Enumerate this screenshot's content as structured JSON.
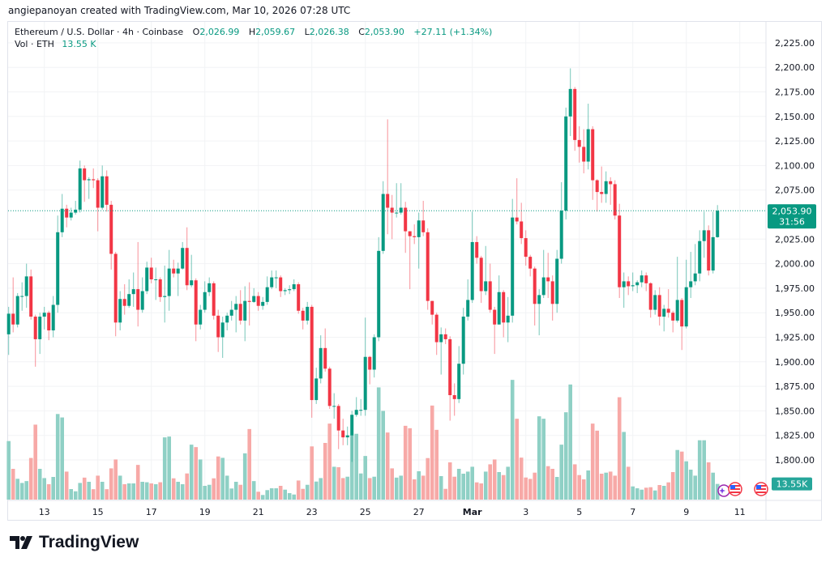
{
  "credit": "angiepanoyan created with TradingView.com, Mar 10, 2026 07:28 UTC",
  "legend": {
    "symbol": "Ethereum / U.S. Dollar · 4h · Coinbase",
    "o_label": "O",
    "o": "2,026.99",
    "h_label": "H",
    "h": "2,059.67",
    "l_label": "L",
    "l": "2,026.38",
    "c_label": "C",
    "c": "2,053.90",
    "change": "+27.11 (+1.34%)",
    "vol_label": "Vol · ETH",
    "vol": "13.55 K"
  },
  "logo": {
    "text": "TradingView"
  },
  "colors": {
    "up": "#089981",
    "down": "#f23645",
    "up_vol": "#8fd0c5",
    "down_vol": "#f7a9a7",
    "grid": "#f2f3f5"
  },
  "chart_data": {
    "type": "candlestick",
    "title": "Ethereum / U.S. Dollar · 4h · Coinbase",
    "interval": "4h",
    "first_candle": "Feb 11 2026 16:00",
    "open_first": 1928,
    "close": [
      1949,
      1938,
      1967,
      1967,
      1987,
      1946,
      1923,
      1946,
      1950,
      1932,
      1958,
      2032,
      2056,
      2047,
      2052,
      2055,
      2097,
      2085,
      2086,
      2085,
      2057,
      2089,
      2060,
      2010,
      1940,
      1964,
      1957,
      1969,
      1974,
      1953,
      1972,
      1996,
      1984,
      1984,
      1966,
      1967,
      1995,
      1990,
      1995,
      2016,
      1978,
      1983,
      1938,
      1953,
      1971,
      1980,
      1947,
      1925,
      1940,
      1947,
      1953,
      1959,
      1942,
      1962,
      1961,
      1967,
      1957,
      1961,
      1976,
      1986,
      1986,
      1972,
      1973,
      1974,
      1979,
      1952,
      1942,
      1956,
      1861,
      1883,
      1914,
      1893,
      1855,
      1855,
      1830,
      1823,
      1825,
      1846,
      1851,
      1851,
      1905,
      1892,
      1925,
      2013,
      2071,
      2057,
      2052,
      2052,
      2057,
      2033,
      2028,
      2027,
      2044,
      2032,
      1962,
      1948,
      1920,
      1928,
      1923,
      1866,
      1862,
      1898,
      1946,
      1963,
      2022,
      2006,
      1972,
      1982,
      1953,
      1938,
      1971,
      1940,
      1947,
      2047,
      2043,
      2026,
      2007,
      1995,
      1959,
      1968,
      1986,
      1982,
      1959,
      2005,
      2054,
      2150,
      2178,
      2126,
      2119,
      2104,
      2137,
      2085,
      2073,
      2071,
      2084,
      2081,
      2049,
      1976,
      1982,
      1977,
      1978,
      1981,
      1988,
      1980,
      1953,
      1968,
      1946,
      1954,
      1950,
      1942,
      1963,
      1936,
      1976,
      1982,
      1990,
      2023,
      2034,
      1993,
      2027,
      2053.9
    ],
    "high": [
      1956,
      1986,
      1970,
      1981,
      2000,
      1994,
      1948,
      1950,
      1956,
      1952,
      1967,
      2049,
      2071,
      2060,
      2057,
      2064,
      2105,
      2100,
      2088,
      2097,
      2087,
      2100,
      2095,
      2064,
      2012,
      1972,
      1979,
      1984,
      1991,
      2022,
      1986,
      2002,
      2006,
      1996,
      1986,
      1998,
      2014,
      2004,
      2001,
      2022,
      2037,
      2009,
      1985,
      1958,
      1982,
      1986,
      1982,
      1953,
      1946,
      1950,
      1962,
      1967,
      1973,
      1977,
      1981,
      1975,
      1971,
      1966,
      1987,
      1993,
      1993,
      1988,
      1975,
      1978,
      1984,
      1981,
      1955,
      1961,
      1958,
      1894,
      1927,
      1934,
      1895,
      1868,
      1857,
      1842,
      1834,
      1850,
      1864,
      1862,
      1945,
      1906,
      1928,
      2027,
      2084,
      2147,
      2070,
      2082,
      2082,
      2063,
      2033,
      2040,
      2052,
      2064,
      2036,
      1962,
      1950,
      1935,
      1934,
      1926,
      1878,
      1916,
      1955,
      1984,
      2053,
      2028,
      2008,
      2018,
      2000,
      1956,
      1988,
      1973,
      1966,
      2066,
      2087,
      2062,
      2034,
      2009,
      1997,
      1974,
      2014,
      2011,
      1988,
      2014,
      2083,
      2159,
      2199,
      2180,
      2140,
      2137,
      2163,
      2140,
      2086,
      2099,
      2094,
      2088,
      2085,
      2061,
      1991,
      1987,
      1991,
      1983,
      1993,
      1991,
      1981,
      1973,
      1976,
      1958,
      1974,
      1952,
      2007,
      1965,
      2004,
      2012,
      2020,
      2034,
      2053,
      2039,
      2053,
      2059.67
    ],
    "low": [
      1907,
      1930,
      1935,
      1952,
      1955,
      1943,
      1895,
      1908,
      1933,
      1922,
      1925,
      1950,
      2027,
      2037,
      2044,
      2050,
      2052,
      2063,
      2066,
      2077,
      2033,
      2055,
      2053,
      1994,
      1926,
      1932,
      1948,
      1955,
      1956,
      1936,
      1950,
      1969,
      1980,
      1963,
      1961,
      1940,
      1952,
      1986,
      1967,
      1994,
      1973,
      1976,
      1921,
      1933,
      1950,
      1967,
      1943,
      1910,
      1904,
      1932,
      1942,
      1930,
      1938,
      1921,
      1937,
      1960,
      1952,
      1953,
      1958,
      1974,
      1975,
      1966,
      1968,
      1969,
      1972,
      1949,
      1933,
      1938,
      1843,
      1857,
      1878,
      1890,
      1852,
      1842,
      1811,
      1815,
      1815,
      1798,
      1844,
      1845,
      1845,
      1877,
      1884,
      1921,
      2010,
      2030,
      2025,
      2047,
      2050,
      2011,
      1974,
      2020,
      1995,
      2028,
      1953,
      1938,
      1907,
      1887,
      1918,
      1840,
      1845,
      1858,
      1887,
      1942,
      1960,
      2000,
      1960,
      1968,
      1950,
      1908,
      1938,
      1925,
      1920,
      1940,
      2040,
      2020,
      1998,
      1987,
      1937,
      1927,
      1965,
      1965,
      1942,
      1950,
      2000,
      2045,
      2130,
      2115,
      2103,
      2092,
      2096,
      2065,
      2053,
      2062,
      2062,
      2060,
      2045,
      1965,
      1955,
      1968,
      1972,
      1970,
      1976,
      1972,
      1945,
      1948,
      1937,
      1931,
      1945,
      1930,
      1940,
      1912,
      1934,
      1965,
      1978,
      1982,
      2006,
      1988,
      1990,
      2026.38
    ],
    "volume_k": [
      50.6,
      26.6,
      18,
      14.4,
      16,
      36,
      64.8,
      26.6,
      18.6,
      13.3,
      19.6,
      74,
      71,
      24.2,
      9.1,
      7.2,
      14.4,
      19,
      15.4,
      9,
      20.7,
      15.4,
      9,
      27,
      34.7,
      20.7,
      13.3,
      14,
      14,
      30,
      15.4,
      15,
      14,
      13.3,
      15,
      53.8,
      54.5,
      18.4,
      15.4,
      13.3,
      22.6,
      47.5,
      45.4,
      34.7,
      11.9,
      12.8,
      18.4,
      37.3,
      36.1,
      20.7,
      9.6,
      15.4,
      12.8,
      40,
      61,
      16,
      6.8,
      4,
      8.2,
      9.8,
      9.8,
      11.9,
      8.6,
      5.6,
      4.4,
      16.5,
      9.3,
      12.8,
      46,
      15.6,
      18.6,
      49,
      65.7,
      28.4,
      28,
      18.6,
      19.8,
      55.7,
      56.9,
      22.6,
      37.7,
      18.6,
      19.8,
      97,
      76.7,
      58,
      27,
      19,
      20.7,
      63.8,
      61.7,
      17.5,
      24.5,
      20.7,
      35.9,
      81.3,
      60.3,
      20.3,
      9.3,
      32.2,
      19.8,
      26.6,
      22.4,
      24.2,
      28.4,
      14.9,
      14,
      24.2,
      30.5,
      34.7,
      23.8,
      21.2,
      28.4,
      103.5,
      69.9,
      36.3,
      19.1,
      17.9,
      23.3,
      72,
      69.9,
      28.9,
      26.6,
      19.6,
      47.5,
      75.5,
      99.5,
      30.5,
      21.2,
      17.5,
      25.2,
      65.7,
      59.6,
      22.4,
      23.3,
      24.2,
      20.7,
      88.5,
      58.5,
      28.4,
      11.4,
      9.8,
      8.6,
      10.3,
      10.7,
      7.9,
      12.6,
      11.9,
      14.9,
      23.8,
      42.9,
      41.5,
      33.1,
      25.9,
      20.7,
      51.3,
      51.3,
      32.2,
      23.3,
      13.55
    ],
    "ylim": [
      1800,
      2225
    ],
    "y_ticks": [
      "2,225.00",
      "2,200.00",
      "2,175.00",
      "2,150.00",
      "2,125.00",
      "2,100.00",
      "2,075.00",
      "2,025.00",
      "2,000.00",
      "1,975.00",
      "1,950.00",
      "1,925.00",
      "1,900.00",
      "1,875.00",
      "1,850.00",
      "1,825.00",
      "1,800.00"
    ],
    "y_tick_values": [
      2225,
      2200,
      2175,
      2150,
      2125,
      2100,
      2075,
      2025,
      2000,
      1975,
      1950,
      1925,
      1900,
      1875,
      1850,
      1825,
      1800
    ],
    "x_ticks": [
      "13",
      "15",
      "17",
      "19",
      "21",
      "23",
      "25",
      "27",
      "Mar",
      "3",
      "5",
      "7",
      "9",
      "11"
    ],
    "last_price": {
      "label": "2,053.90",
      "value": 2053.9,
      "countdown": "31:56"
    },
    "last_volume": {
      "label": "13.55K"
    },
    "grid": true
  }
}
